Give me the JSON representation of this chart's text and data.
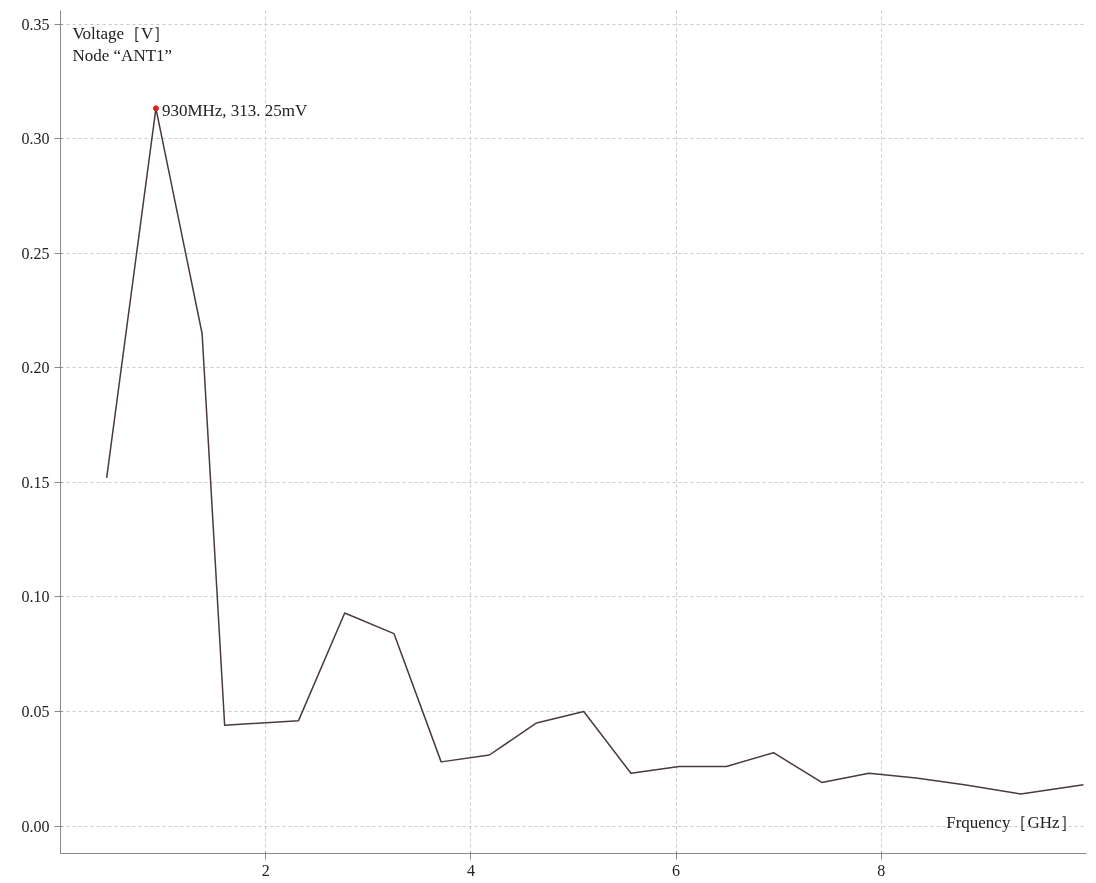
{
  "chart_data": {
    "type": "line",
    "xlabel": "Frquency［GHz］",
    "ylabel": "Voltage［V］",
    "x": [
      0.45,
      0.93,
      1.38,
      1.6,
      2.32,
      2.77,
      3.25,
      3.71,
      4.18,
      4.64,
      5.1,
      5.56,
      6.03,
      6.49,
      6.95,
      7.42,
      7.88,
      8.34,
      8.81,
      9.36,
      9.97
    ],
    "series": [
      {
        "color": "#4a3a3a",
        "values": [
          0.152,
          0.3133,
          0.215,
          0.044,
          0.046,
          0.093,
          0.084,
          0.028,
          0.031,
          0.045,
          0.05,
          0.023,
          0.026,
          0.026,
          0.032,
          0.019,
          0.023,
          0.021,
          0.018,
          0.014,
          0.018
        ]
      }
    ],
    "annotations": [
      "Node “ANT1”",
      {
        "text": "930MHz, 313. 25mV",
        "x": 0.93,
        "y": 0.3133
      }
    ],
    "xlim": [
      0.0,
      10.0
    ],
    "ylim": [
      -0.012,
      0.356
    ],
    "xticks": [
      2,
      4,
      6,
      8
    ],
    "yticks": [
      {
        "value": 0,
        "label": "0.00"
      },
      0.05,
      {
        "value": 0.1,
        "label": "0.10"
      },
      0.15,
      {
        "value": 0.2,
        "label": "0.20"
      },
      0.25,
      {
        "value": 0.3,
        "label": "0.30"
      },
      0.35
    ],
    "grid": true,
    "marker": "none",
    "line_style": "solid"
  }
}
